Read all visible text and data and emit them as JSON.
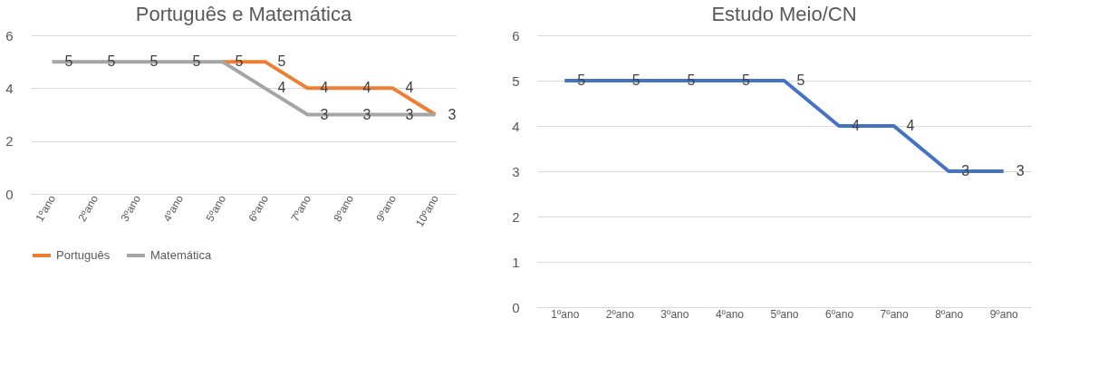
{
  "chart_data": [
    {
      "type": "line",
      "title": "Português e Matemática",
      "categories": [
        "1ºano",
        "2ºano",
        "3ºano",
        "4ºano",
        "5ºano",
        "6ºano",
        "7ºano",
        "8ºano",
        "9ºano",
        "10ºano"
      ],
      "series": [
        {
          "name": "Português",
          "color": "#ed7d31",
          "values": [
            null,
            null,
            null,
            null,
            5,
            5,
            4,
            4,
            4,
            3
          ]
        },
        {
          "name": "Matemática",
          "color": "#a5a5a5",
          "values": [
            5,
            5,
            5,
            5,
            5,
            4,
            3,
            3,
            3,
            3
          ],
          "value_labels": [
            "5",
            "5",
            "5",
            "5",
            null,
            "4",
            "3",
            "3",
            "3",
            null
          ]
        }
      ],
      "ylim": [
        0,
        6
      ],
      "yticks": [
        0,
        2,
        4,
        6
      ],
      "grid": "y",
      "legend": "bottom",
      "data_labels": true,
      "marker": "none",
      "line_style": "solid"
    },
    {
      "type": "line",
      "title": "Estudo Meio/CN",
      "categories": [
        "1ºano",
        "2ºano",
        "3ºano",
        "4ºano",
        "5ºano",
        "6ºano",
        "7ºano",
        "8ºano",
        "9ºano"
      ],
      "series": [
        {
          "color": "#4472c4",
          "values": [
            5,
            5,
            5,
            5,
            5,
            4,
            4,
            3,
            3
          ]
        }
      ],
      "ylim": [
        0,
        6
      ],
      "yticks": [
        0,
        1,
        2,
        3,
        4,
        5,
        6
      ],
      "grid": "y",
      "data_labels": true,
      "marker": "none",
      "line_style": "solid"
    }
  ]
}
